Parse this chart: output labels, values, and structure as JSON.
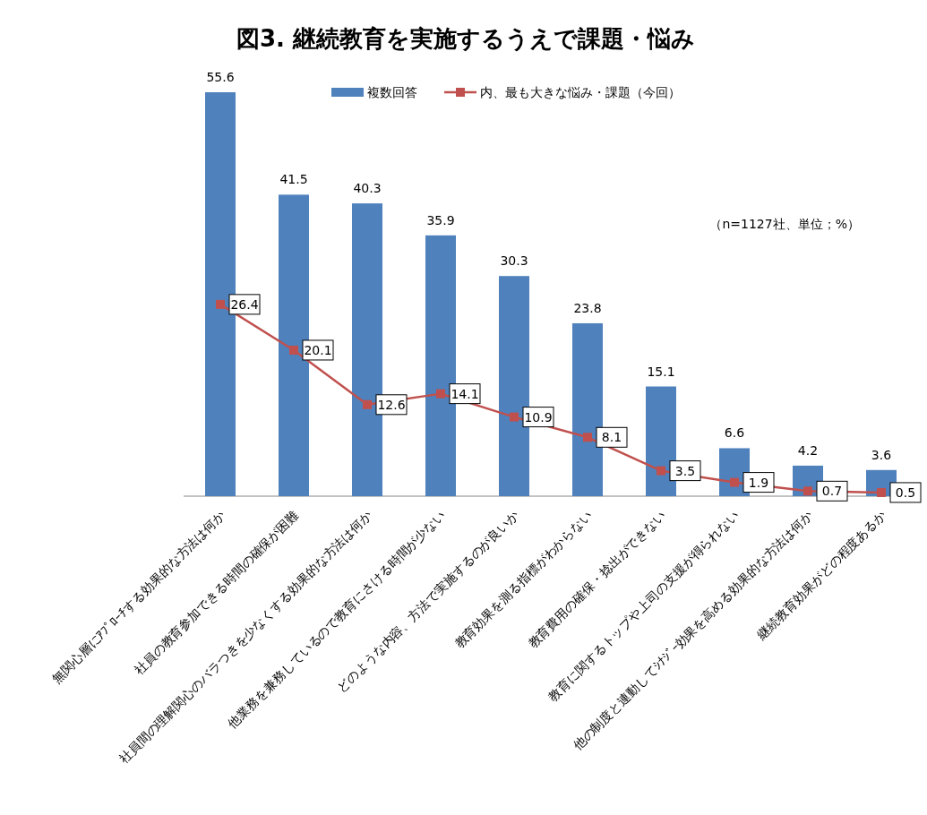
{
  "chart_data": {
    "type": "bar",
    "title": "図3. 継続教育を実施するうえで課題・悩み",
    "categories": [
      "無関心層にｱﾌﾟﾛｰﾁする効果的な方法は何か",
      "社員の教育参加できる時間の確保が困難",
      "社員間の理解関心のバラつきを少なくする効果的な方法は何か",
      "他業務を兼務しているので教育にさける時間が少ない",
      "どのような内容、方法で実施するのが良いか",
      "教育効果を測る指標がわからない",
      "教育費用の確保・捻出ができない",
      "教育に関するトップや上司の支援が得られない",
      "他の制度と連動してｼﾅｼﾞｰ効果を高める効果的な方法は何か",
      "継続教育効果がどの程度あるか"
    ],
    "series": [
      {
        "name": "複数回答",
        "color": "#4f81bd",
        "values": [
          55.6,
          41.5,
          40.3,
          35.9,
          30.3,
          23.8,
          15.1,
          6.6,
          4.2,
          3.6
        ]
      },
      {
        "name": "内、最も大きな悩み・課題（今回）",
        "type": "line",
        "color": "#c0504d",
        "marker": "square",
        "values": [
          26.4,
          20.1,
          12.6,
          14.1,
          10.9,
          8.1,
          3.5,
          1.9,
          0.7,
          0.5
        ]
      }
    ],
    "data_labels": true,
    "legend": "top",
    "annotations": [
      "（n=1127社、単位；%）"
    ]
  }
}
